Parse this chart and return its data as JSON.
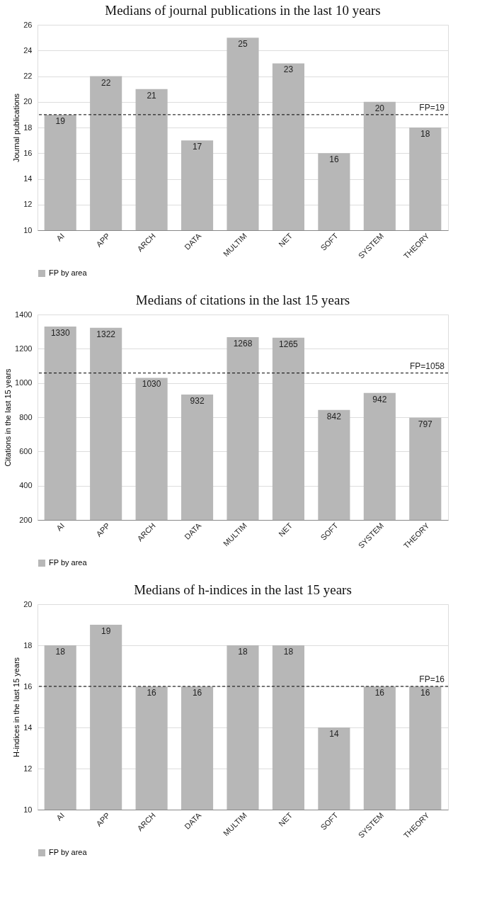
{
  "chart_data": [
    {
      "type": "bar",
      "title": "Medians of journal publications in the last 10 years",
      "ylabel": "Journal publications",
      "categories": [
        "AI",
        "APP",
        "ARCH",
        "DATA",
        "MULTIM",
        "NET",
        "SOFT",
        "SYSTEM",
        "THEORY"
      ],
      "series": [
        {
          "name": "FP by area",
          "color": "#b7b7b7",
          "values": [
            19,
            22,
            21,
            17,
            25,
            23,
            16,
            20,
            18
          ]
        }
      ],
      "ylim": [
        10,
        26
      ],
      "yticks": [
        10,
        12,
        14,
        16,
        18,
        20,
        22,
        24,
        26
      ],
      "grid": "y",
      "legend": "bottom",
      "data_labels": true,
      "ref_lines": [
        {
          "axis": "y",
          "value": 19,
          "label": "FP=19",
          "line_style": "dashed",
          "color": "#000000"
        }
      ]
    },
    {
      "type": "bar",
      "title": "Medians of citations in the last 15 years",
      "ylabel": "Citations in the last 15 years",
      "categories": [
        "AI",
        "APP",
        "ARCH",
        "DATA",
        "MULTIM",
        "NET",
        "SOFT",
        "SYSTEM",
        "THEORY"
      ],
      "series": [
        {
          "name": "FP by area",
          "color": "#b7b7b7",
          "values": [
            1330,
            1322,
            1030,
            932,
            1268,
            1265,
            842,
            942,
            797
          ]
        }
      ],
      "ylim": [
        200,
        1400
      ],
      "yticks": [
        200,
        400,
        600,
        800,
        {
          "value": 1000,
          "label": "1000"
        },
        {
          "value": 1200,
          "label": "1200"
        },
        {
          "value": 1400,
          "label": "1400"
        }
      ],
      "grid": "y",
      "legend": "bottom",
      "data_labels": true,
      "ref_lines": [
        {
          "axis": "y",
          "value": 1058,
          "label": "FP=1058",
          "line_style": "dashed",
          "color": "#000000"
        }
      ]
    },
    {
      "type": "bar",
      "title": "Medians of h-indices in the last 15 years",
      "ylabel": "H-indices in the last 15 years",
      "categories": [
        "AI",
        "APP",
        "ARCH",
        "DATA",
        "MULTIM",
        "NET",
        "SOFT",
        "SYSTEM",
        "THEORY"
      ],
      "series": [
        {
          "name": "FP by area",
          "color": "#b7b7b7",
          "values": [
            18,
            19,
            16,
            16,
            18,
            18,
            14,
            16,
            16
          ]
        }
      ],
      "ylim": [
        10,
        20
      ],
      "yticks": [
        10,
        12,
        14,
        16,
        18,
        20
      ],
      "grid": "y",
      "legend": "bottom",
      "data_labels": true,
      "ref_lines": [
        {
          "axis": "y",
          "value": 16,
          "label": "FP=16",
          "line_style": "dashed",
          "color": "#000000"
        }
      ]
    }
  ]
}
